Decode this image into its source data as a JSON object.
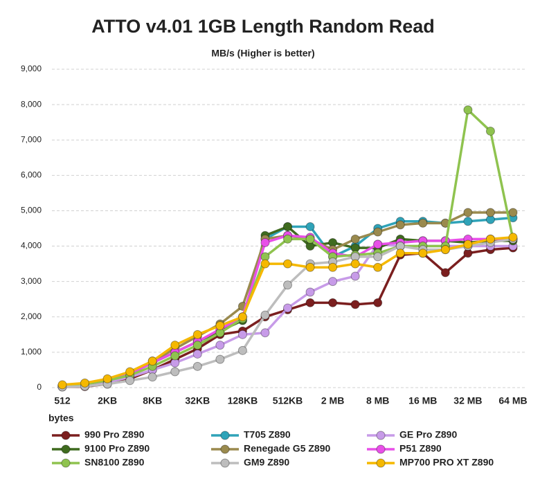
{
  "chart_data": {
    "type": "line",
    "title": "ATTO v4.01 1GB Length Random Read",
    "subtitle": "MB/s (Higher is better)",
    "x_label": "bytes",
    "categories": [
      "512",
      null,
      "2KB",
      null,
      "8KB",
      null,
      "32KB",
      null,
      "128KB",
      null,
      "512KB",
      null,
      "2 MB",
      null,
      "8 MB",
      null,
      "16 MB",
      null,
      "32 MB",
      null,
      "64 MB"
    ],
    "ylim": [
      0,
      9000
    ],
    "yticks": [
      0,
      {
        "value": 1000,
        "label": "1,000"
      },
      {
        "value": 2000,
        "label": "2,000"
      },
      {
        "value": 3000,
        "label": "3,000"
      },
      {
        "value": 4000,
        "label": "4,000"
      },
      {
        "value": 5000,
        "label": "5,000"
      },
      {
        "value": 6000,
        "label": "6,000"
      },
      {
        "value": 7000,
        "label": "7,000"
      },
      {
        "value": 8000,
        "label": "8,000"
      },
      {
        "value": 9000,
        "label": "9,000"
      }
    ],
    "grid": true,
    "series": [
      {
        "name": "990 Pro Z890",
        "color": "#7b1f1f",
        "values": [
          20,
          30,
          100,
          250,
          500,
          800,
          1100,
          1500,
          1600,
          2000,
          2200,
          2400,
          2400,
          2350,
          2400,
          3750,
          3800,
          3250,
          3800,
          3900,
          3950
        ]
      },
      {
        "name": "T705 Z890",
        "color": "#2fa3b8",
        "values": [
          50,
          100,
          200,
          400,
          700,
          1000,
          1300,
          1600,
          1900,
          4200,
          4550,
          4550,
          3700,
          4000,
          4500,
          4700,
          4700,
          4650,
          4700,
          4750,
          4800
        ]
      },
      {
        "name": "GE Pro Z890",
        "color": "#c79be8",
        "values": [
          30,
          80,
          150,
          300,
          500,
          700,
          950,
          1200,
          1500,
          1550,
          2250,
          2700,
          3000,
          3150,
          4050,
          4000,
          4000,
          4000,
          4000,
          4000,
          4000
        ]
      },
      {
        "name": "9100 Pro Z890",
        "color": "#3f6b1f",
        "values": [
          50,
          100,
          200,
          400,
          700,
          1000,
          1300,
          1600,
          1900,
          4300,
          4550,
          4000,
          4100,
          3950,
          3950,
          4200,
          4150,
          4150,
          4100,
          4150,
          4150
        ]
      },
      {
        "name": "Renegade G5 Z890",
        "color": "#9a8a4e",
        "values": [
          60,
          120,
          220,
          420,
          750,
          1100,
          1450,
          1800,
          2300,
          4200,
          4300,
          4200,
          3900,
          4200,
          4400,
          4600,
          4650,
          4650,
          4950,
          4950,
          4950
        ]
      },
      {
        "name": "P51 Z890",
        "color": "#e84fe8",
        "values": [
          50,
          100,
          200,
          400,
          700,
          1000,
          1300,
          1650,
          2000,
          4100,
          4300,
          4250,
          3800,
          3700,
          4050,
          4100,
          4150,
          4150,
          4200,
          4200,
          4200
        ]
      },
      {
        "name": "SN8100 Z890",
        "color": "#8fc34f",
        "values": [
          50,
          100,
          200,
          350,
          600,
          900,
          1200,
          1550,
          1950,
          3700,
          4200,
          4200,
          3700,
          3750,
          3800,
          4000,
          4000,
          4000,
          7850,
          7250,
          4200
        ]
      },
      {
        "name": "GM9 Z890",
        "color": "#bdbdbd",
        "values": [
          20,
          40,
          100,
          200,
          300,
          450,
          600,
          800,
          1050,
          2050,
          2900,
          3500,
          3550,
          3700,
          3700,
          4000,
          3900,
          3900,
          4000,
          4100,
          4200
        ]
      },
      {
        "name": "MP700 PRO XT Z890",
        "color": "#f5b800",
        "values": [
          80,
          130,
          250,
          450,
          750,
          1200,
          1500,
          1750,
          2000,
          3500,
          3500,
          3400,
          3400,
          3500,
          3400,
          3800,
          3800,
          3900,
          4050,
          4200,
          4250
        ]
      }
    ]
  }
}
